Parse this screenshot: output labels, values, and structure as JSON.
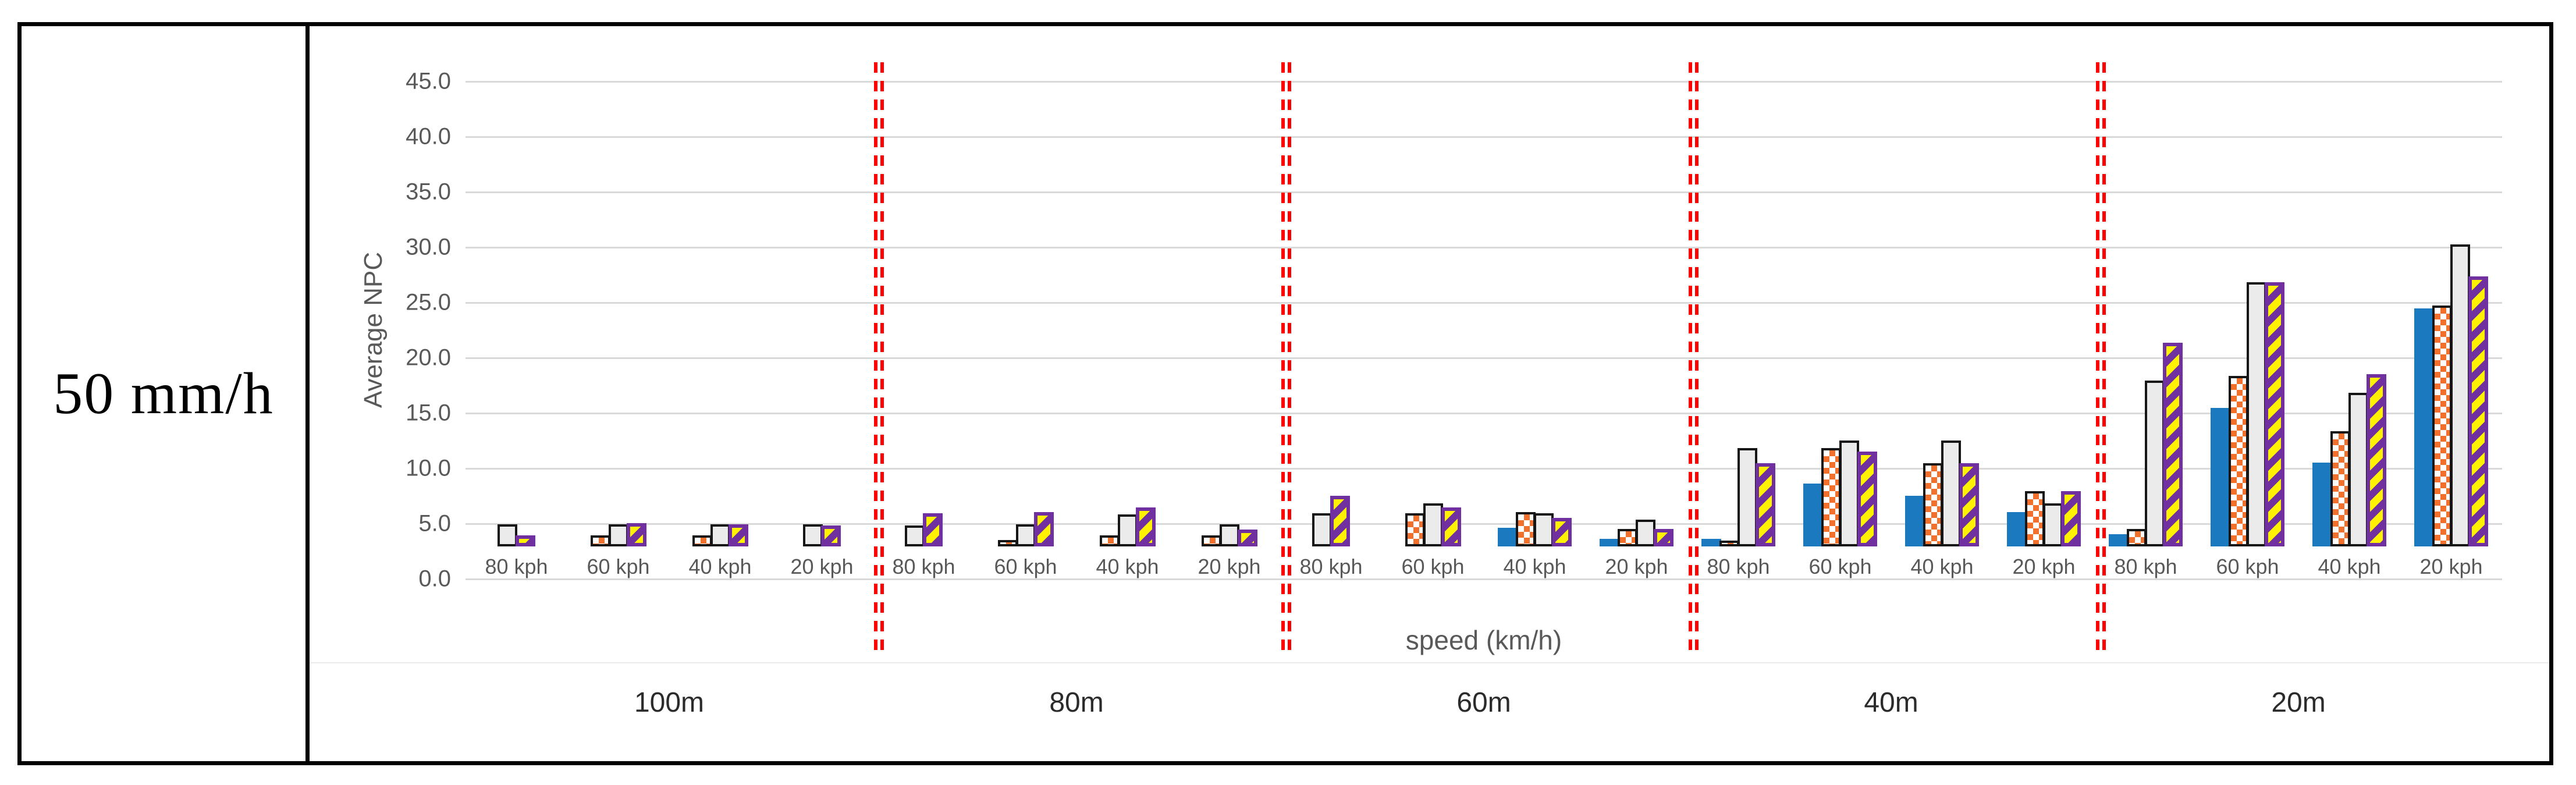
{
  "row_label": "50 mm/h",
  "colors": {
    "series_blue": "#1A79BF",
    "series_orange_checker": "#F1702B",
    "series_gray_fill": "#EBEBEB",
    "series_yellow": "#FFF100",
    "series_stripe_purple": "#7030A0",
    "bar_outline_black": "#161616",
    "red_separator": "#FF0000",
    "gridline": "#D9D9D9",
    "axis_text": "#595959",
    "group_label_text": "#2B2B2B"
  },
  "chart_data": {
    "type": "bar",
    "title": "",
    "ylabel": "Average NPC",
    "xlabel": "speed (km/h)",
    "ylim": [
      0,
      45
    ],
    "ytick_step": 5,
    "ytick_labels": [
      "0.0",
      "5.0",
      "10.0",
      "15.0",
      "20.0",
      "25.0",
      "30.0",
      "35.0",
      "40.0",
      "45.0"
    ],
    "grid": true,
    "legend_position": "none",
    "group_categories": [
      "100m",
      "80m",
      "60m",
      "40m",
      "20m"
    ],
    "speed_categories": [
      "80 kph",
      "60 kph",
      "40 kph",
      "20 kph"
    ],
    "group_separator_style": "vertical red double dashed lines between distance groups",
    "series": [
      {
        "name": "blue-solid",
        "pattern": "solid blue, no outline",
        "values": [
          [
            0,
            0,
            0,
            0
          ],
          [
            0,
            0,
            0,
            0
          ],
          [
            0,
            0,
            1.7,
            0.7
          ],
          [
            0.7,
            5.7,
            4.6,
            3.1
          ],
          [
            1.1,
            12.5,
            7.6,
            21.5
          ]
        ]
      },
      {
        "name": "orange-checker",
        "pattern": "white/orange checkerboard, black outline",
        "values": [
          [
            0,
            1.0,
            1.0,
            0
          ],
          [
            0,
            0.6,
            1.0,
            1.0
          ],
          [
            0,
            3.0,
            3.1,
            1.6
          ],
          [
            0.5,
            8.9,
            7.5,
            5.0
          ],
          [
            1.6,
            15.4,
            10.4,
            21.8
          ]
        ]
      },
      {
        "name": "gray-solid",
        "pattern": "light gray, black outline",
        "values": [
          [
            2.0,
            2.0,
            2.0,
            2.0
          ],
          [
            1.9,
            2.0,
            2.9,
            2.0
          ],
          [
            3.0,
            3.9,
            3.0,
            2.4
          ],
          [
            8.9,
            9.6,
            9.6,
            3.9
          ],
          [
            15.0,
            23.9,
            13.9,
            27.3
          ]
        ]
      },
      {
        "name": "yellow-purple-stripe",
        "pattern": "yellow with purple diagonal stripes, purple outline",
        "values": [
          [
            1.0,
            2.1,
            2.0,
            1.9
          ],
          [
            3.0,
            3.1,
            3.5,
            1.5
          ],
          [
            4.6,
            3.5,
            2.6,
            1.6
          ],
          [
            7.5,
            8.6,
            7.5,
            5.0
          ],
          [
            18.4,
            23.9,
            15.6,
            24.4
          ]
        ]
      }
    ]
  }
}
